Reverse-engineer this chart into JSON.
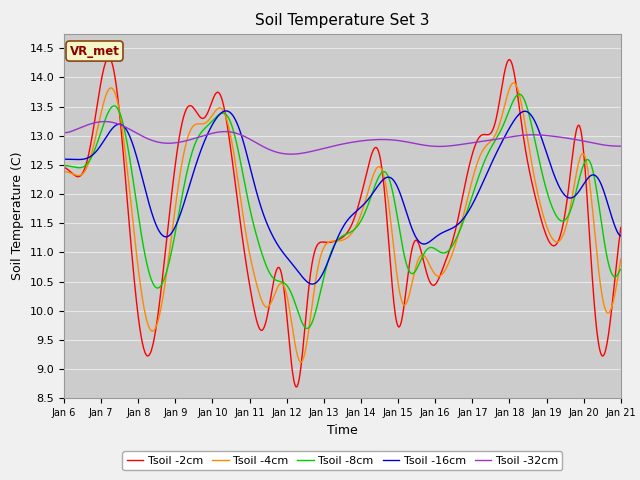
{
  "title": "Soil Temperature Set 3",
  "xlabel": "Time",
  "ylabel": "Soil Temperature (C)",
  "ylim": [
    8.5,
    14.75
  ],
  "xlim": [
    0,
    360
  ],
  "fig_facecolor": "#f0f0f0",
  "ax_facecolor": "#cccccc",
  "grid_color": "#e8e8e8",
  "series_colors": [
    "#ff0000",
    "#ff8800",
    "#00cc00",
    "#0000dd",
    "#9933cc"
  ],
  "series_labels": [
    "Tsoil -2cm",
    "Tsoil -4cm",
    "Tsoil -8cm",
    "Tsoil -16cm",
    "Tsoil -32cm"
  ],
  "x_tick_labels": [
    "Jan 6",
    "Jan 7",
    "Jan 8",
    "Jan 9",
    "Jan 10",
    "Jan 11",
    "Jan 12",
    "Jan 13",
    "Jan 14",
    "Jan 15",
    "Jan 16",
    "Jan 17",
    "Jan 18",
    "Jan 19",
    "Jan 20",
    "Jan 21"
  ],
  "x_tick_positions": [
    0,
    24,
    48,
    72,
    96,
    120,
    144,
    168,
    192,
    216,
    240,
    264,
    288,
    312,
    336,
    360
  ],
  "annotation_text": "VR_met",
  "yticks": [
    8.5,
    9.0,
    9.5,
    10.0,
    10.5,
    11.0,
    11.5,
    12.0,
    12.5,
    13.0,
    13.5,
    14.0,
    14.5
  ]
}
